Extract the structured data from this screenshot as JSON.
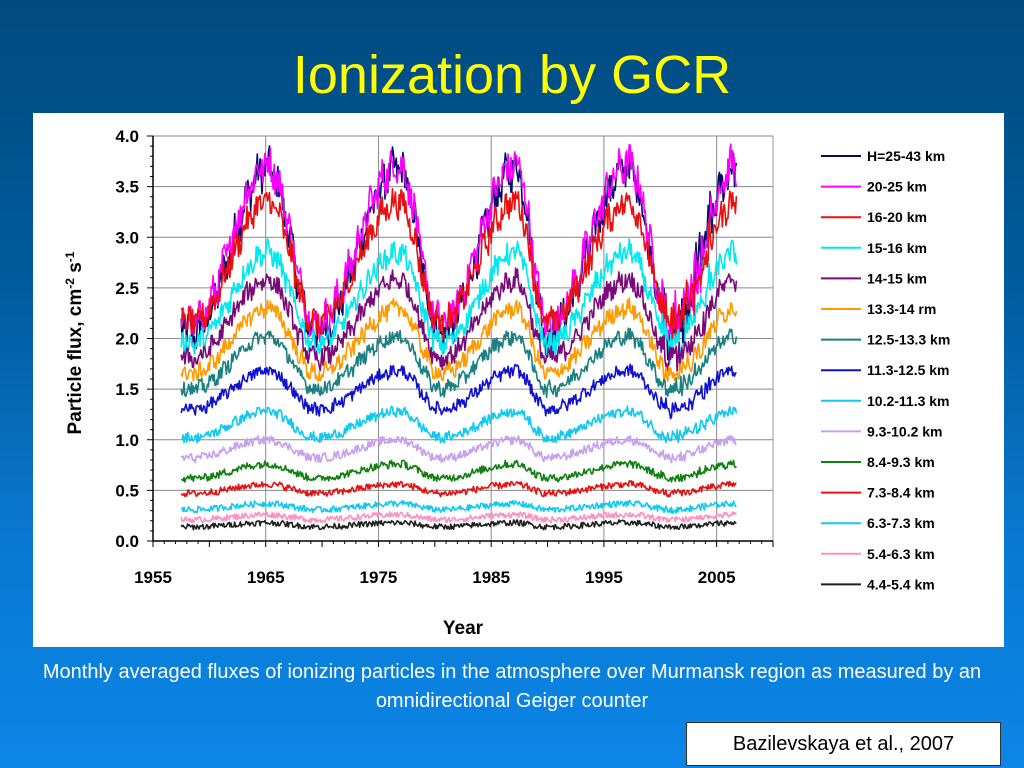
{
  "slide": {
    "title": "Ionization by GCR",
    "caption": "Monthly averaged fluxes of ionizing particles in the atmosphere over Murmansk region as measured by an omnidirectional Geiger counter",
    "citation": "Bazilevskaya et al., 2007"
  },
  "chart_data": {
    "type": "line",
    "xlabel": "Year",
    "ylabel_main": "Particle flux, cm",
    "ylabel_exp1": "-2",
    "ylabel_s": " s",
    "ylabel_exp2": "-1",
    "xlim": [
      1955,
      2010
    ],
    "ylim": [
      0,
      4.0
    ],
    "x_ticks": [
      1955,
      1965,
      1975,
      1985,
      1995,
      2005
    ],
    "x_tick_labels": [
      "1955",
      "1965",
      "1975",
      "1985",
      "1995",
      "2005"
    ],
    "y_ticks": [
      0,
      0.5,
      1.0,
      1.5,
      2.0,
      2.5,
      3.0,
      3.5,
      4.0
    ],
    "y_tick_labels": [
      "0.0",
      "0.5",
      "1.0",
      "1.5",
      "2.0",
      "2.5",
      "3.0",
      "3.5",
      "4.0"
    ],
    "grid": true,
    "legend_position": "right",
    "x_data_range": [
      1957.5,
      2006.8
    ],
    "solar_max_years": [
      1958.5,
      1969.5,
      1980.5,
      1990.0,
      2001.0
    ],
    "solar_min_years": [
      1965.2,
      1976.8,
      1987.2,
      1997.2,
      2006.7
    ],
    "series": [
      {
        "name": "H=25-43 km",
        "color": "#0a0a6e",
        "max": 3.68,
        "min": 2.05
      },
      {
        "name": "20-25 km",
        "color": "#ff00ff",
        "max": 3.72,
        "min": 2.15
      },
      {
        "name": "16-20 km",
        "color": "#e81010",
        "max": 3.35,
        "min": 2.15
      },
      {
        "name": "15-16 km",
        "color": "#00e8f0",
        "max": 2.85,
        "min": 1.95
      },
      {
        "name": "14-15 km",
        "color": "#7a0a7a",
        "max": 2.58,
        "min": 1.8
      },
      {
        "name": "13.3-14 rm",
        "color": "#ff9a00",
        "max": 2.3,
        "min": 1.65
      },
      {
        "name": "12.5-13.3 km",
        "color": "#1a8080",
        "max": 2.02,
        "min": 1.5
      },
      {
        "name": "11.3-12.5 km",
        "color": "#1010d0",
        "max": 1.68,
        "min": 1.3
      },
      {
        "name": "10.2-11.3 km",
        "color": "#10c8f0",
        "max": 1.28,
        "min": 1.02
      },
      {
        "name": "9.3-10.2 km",
        "color": "#c8a0f0",
        "max": 1.0,
        "min": 0.82
      },
      {
        "name": "8.4-9.3 km",
        "color": "#108010",
        "max": 0.76,
        "min": 0.62
      },
      {
        "name": "7.3-8.4 km",
        "color": "#e81010",
        "max": 0.56,
        "min": 0.47
      },
      {
        "name": "6.3-7.3 km",
        "color": "#10c8f0",
        "max": 0.37,
        "min": 0.31
      },
      {
        "name": "5.4-6.3 km",
        "color": "#ff90c0",
        "max": 0.26,
        "min": 0.21
      },
      {
        "name": "4.4-5.4 km",
        "color": "#202020",
        "max": 0.18,
        "min": 0.14
      }
    ]
  }
}
